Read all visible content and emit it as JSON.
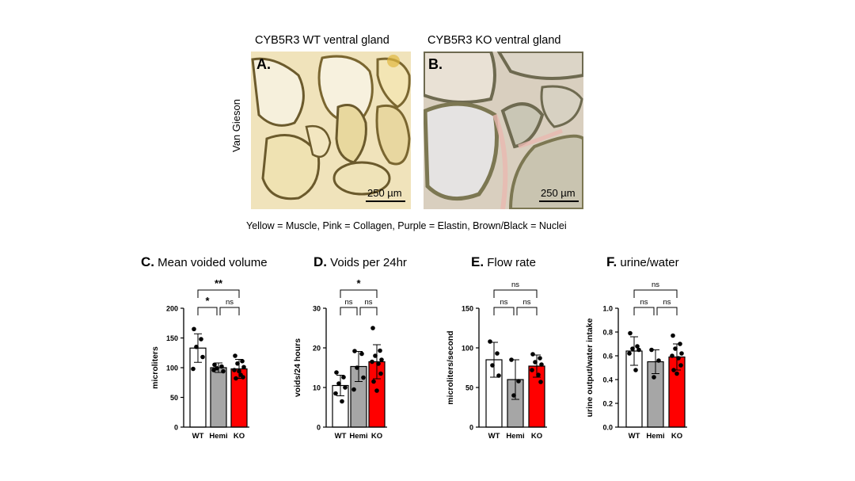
{
  "images": {
    "wt_title": "CYB5R3 WT ventral gland",
    "ko_title": "CYB5R3 KO ventral gland",
    "wt_letter": "A.",
    "ko_letter": "B.",
    "stain_label": "Van Gieson",
    "scale_bar": "250 µm",
    "legend": "Yellow = Muscle, Pink = Collagen, Purple = Elastin, Brown/Black = Nuclei"
  },
  "chart_data": [
    {
      "type": "bar",
      "panel_letter": "C.",
      "title": "Mean voided volume",
      "ylabel": "microliters",
      "categories": [
        "WT",
        "Hemi",
        "KO"
      ],
      "values": [
        133,
        100,
        98
      ],
      "errors": [
        24,
        8,
        16
      ],
      "colors": [
        "#ffffff",
        "#a6a6a6",
        "#ff0000"
      ],
      "points": [
        [
          165,
          148,
          135,
          118,
          98
        ],
        [
          105,
          102,
          99,
          94,
          96
        ],
        [
          120,
          111,
          107,
          101,
          96,
          88,
          84,
          82,
          94
        ]
      ],
      "ylim": [
        0,
        200
      ],
      "yticks": [
        0,
        50,
        100,
        150,
        200
      ],
      "brackets": [
        {
          "from": 0,
          "to": 2,
          "label": "**"
        },
        {
          "from": 0,
          "to": 1,
          "label": "*"
        },
        {
          "from": 1,
          "to": 2,
          "label": "ns"
        }
      ]
    },
    {
      "type": "bar",
      "panel_letter": "D.",
      "title": "Voids per 24hr",
      "ylabel": "voids/24 hours",
      "categories": [
        "WT",
        "Hemi",
        "KO"
      ],
      "values": [
        10.5,
        15.3,
        16.5
      ],
      "errors": [
        2.6,
        3.8,
        4.3
      ],
      "colors": [
        "#ffffff",
        "#a6a6a6",
        "#ff0000"
      ],
      "points": [
        [
          13.8,
          12.6,
          11,
          10,
          8.5,
          6.5
        ],
        [
          19.2,
          18.5,
          15,
          12.5,
          9.5
        ],
        [
          25,
          19.3,
          18,
          17,
          16.5,
          16,
          13.5,
          11.5,
          9.2
        ]
      ],
      "ylim": [
        0,
        30
      ],
      "yticks": [
        0,
        10,
        20,
        30
      ],
      "brackets": [
        {
          "from": 0,
          "to": 2,
          "label": "*"
        },
        {
          "from": 0,
          "to": 1,
          "label": "ns"
        },
        {
          "from": 1,
          "to": 2,
          "label": "ns"
        }
      ]
    },
    {
      "type": "bar",
      "panel_letter": "E.",
      "title": "Flow rate",
      "ylabel": "microliters/second",
      "categories": [
        "WT",
        "Hemi",
        "KO"
      ],
      "values": [
        85,
        60,
        77
      ],
      "errors": [
        22,
        25,
        14
      ],
      "colors": [
        "#ffffff",
        "#a6a6a6",
        "#ff0000"
      ],
      "points": [
        [
          108,
          93,
          78,
          65
        ],
        [
          85,
          58,
          40
        ],
        [
          92,
          87,
          82,
          79,
          72,
          66,
          57
        ]
      ],
      "ylim": [
        0,
        150
      ],
      "yticks": [
        0,
        50,
        100,
        150
      ],
      "brackets": [
        {
          "from": 0,
          "to": 2,
          "label": "ns"
        },
        {
          "from": 0,
          "to": 1,
          "label": "ns"
        },
        {
          "from": 1,
          "to": 2,
          "label": "ns"
        }
      ]
    },
    {
      "type": "bar",
      "panel_letter": "F.",
      "title": "urine/water",
      "ylabel": "urine output/water intake",
      "categories": [
        "WT",
        "Hemi",
        "KO"
      ],
      "values": [
        0.64,
        0.55,
        0.59
      ],
      "errors": [
        0.12,
        0.1,
        0.11
      ],
      "colors": [
        "#ffffff",
        "#a6a6a6",
        "#ff0000"
      ],
      "points": [
        [
          0.79,
          0.68,
          0.66,
          0.65,
          0.62,
          0.48
        ],
        [
          0.65,
          0.56,
          0.42
        ],
        [
          0.77,
          0.7,
          0.66,
          0.62,
          0.6,
          0.58,
          0.52,
          0.48,
          0.45
        ]
      ],
      "ylim": [
        0,
        1.0
      ],
      "yticks": [
        0.0,
        0.2,
        0.4,
        0.6,
        0.8,
        1.0
      ],
      "yticks_labels": [
        "0.0",
        "0.2",
        "0.4",
        "0.6",
        "0.8",
        "1.0"
      ],
      "brackets": [
        {
          "from": 0,
          "to": 2,
          "label": "ns"
        },
        {
          "from": 0,
          "to": 1,
          "label": "ns"
        },
        {
          "from": 1,
          "to": 2,
          "label": "ns"
        }
      ]
    }
  ]
}
